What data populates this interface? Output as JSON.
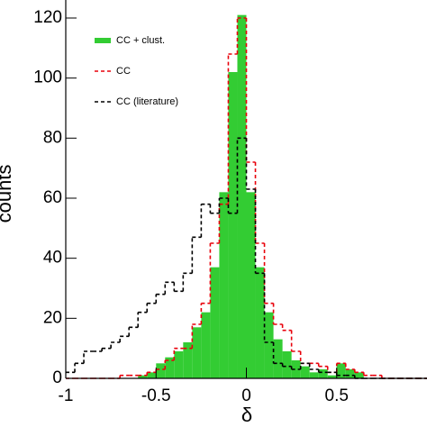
{
  "chart_data": {
    "type": "histogram",
    "x_label": "δ",
    "y_label": "counts",
    "bins": [
      -1,
      -0.95,
      -0.9,
      -0.85,
      -0.8,
      -0.75,
      -0.7,
      -0.65,
      -0.6,
      -0.55,
      -0.5,
      -0.45,
      -0.4,
      -0.35,
      -0.3,
      -0.25,
      -0.2,
      -0.15,
      -0.1,
      -0.05,
      0,
      0.05,
      0.1,
      0.15,
      0.2,
      0.25,
      0.3,
      0.35,
      0.4,
      0.45,
      0.5,
      0.55,
      0.6,
      0.65,
      0.7,
      0.75,
      0.8,
      0.85,
      0.9,
      0.95,
      1
    ],
    "series": [
      {
        "name": "CC + clust.",
        "color": "#33cc33",
        "style": "fill",
        "values": [
          0,
          0,
          0,
          0,
          0,
          0,
          0,
          0,
          1,
          2,
          5,
          7,
          9,
          12,
          17,
          22,
          37,
          62,
          102,
          121,
          62,
          37,
          22,
          13,
          9,
          6,
          4,
          2,
          3,
          1,
          5,
          3,
          2,
          0,
          0,
          0,
          0,
          0,
          0,
          0
        ]
      },
      {
        "name": "CC",
        "color": "#e8000b",
        "style": "dashed",
        "values": [
          0,
          0,
          0,
          0,
          0,
          0,
          1,
          1,
          1,
          2,
          3,
          6,
          10,
          10,
          18,
          25,
          45,
          58,
          108,
          120,
          72,
          45,
          25,
          18,
          16,
          9,
          5,
          5,
          4,
          2,
          5,
          3,
          2,
          1,
          1,
          0,
          0,
          0,
          0,
          0
        ]
      },
      {
        "name": "CC (literature)",
        "color": "#000000",
        "style": "dashed",
        "values": [
          2,
          5,
          9,
          9,
          10,
          12,
          14,
          17,
          22,
          25,
          28,
          32,
          29,
          35,
          47,
          58,
          55,
          60,
          55,
          80,
          63,
          35,
          12,
          5,
          4,
          3,
          5,
          3,
          2,
          2,
          1,
          1,
          0,
          0,
          0,
          0,
          0,
          0,
          0,
          0
        ]
      }
    ],
    "xlim": [
      -1,
      1
    ],
    "ylim": [
      0,
      126
    ],
    "xticks": [
      -1,
      -0.5,
      0,
      0.5
    ],
    "yticks": [
      0,
      20,
      40,
      60,
      80,
      100,
      120
    ],
    "legend": "upper-left"
  }
}
